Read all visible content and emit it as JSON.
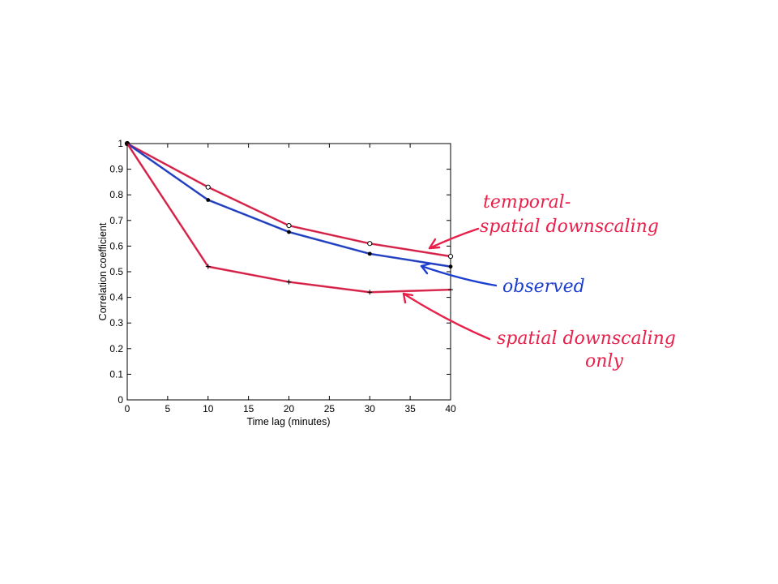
{
  "chart_data": {
    "type": "line",
    "xlabel": "Time lag (minutes)",
    "ylabel": "Correlation coefficient",
    "xlim": [
      0,
      40
    ],
    "ylim": [
      0,
      1
    ],
    "x_ticks": [
      "0",
      "5",
      "10",
      "15",
      "20",
      "25",
      "30",
      "35",
      "40"
    ],
    "y_ticks": [
      "0",
      "0.1",
      "0.2",
      "0.3",
      "0.4",
      "0.5",
      "0.6",
      "0.7",
      "0.8",
      "0.9",
      "1"
    ],
    "grid": false,
    "x": [
      0,
      10,
      20,
      30,
      40
    ],
    "series": [
      {
        "name": "temporal-spatial downscaling",
        "values": [
          1.0,
          0.83,
          0.68,
          0.61,
          0.56
        ],
        "color": "#e8204a",
        "marker": "circle"
      },
      {
        "name": "observed",
        "values": [
          1.0,
          0.78,
          0.655,
          0.57,
          0.52
        ],
        "color": "#1d3fd0",
        "marker": "dot"
      },
      {
        "name": "spatial downscaling only",
        "values": [
          1.0,
          0.52,
          0.46,
          0.42,
          0.43
        ],
        "color": "#e8204a",
        "marker": "plus"
      }
    ],
    "annotations": [
      {
        "lines": [
          "temporal-",
          "spatial downscaling"
        ],
        "color": "#e8204a",
        "points_to": "temporal-spatial downscaling"
      },
      {
        "lines": [
          "observed"
        ],
        "color": "#1d3fd0",
        "points_to": "observed"
      },
      {
        "lines": [
          "spatial downscaling",
          "only"
        ],
        "color": "#e8204a",
        "points_to": "spatial downscaling only"
      }
    ]
  }
}
